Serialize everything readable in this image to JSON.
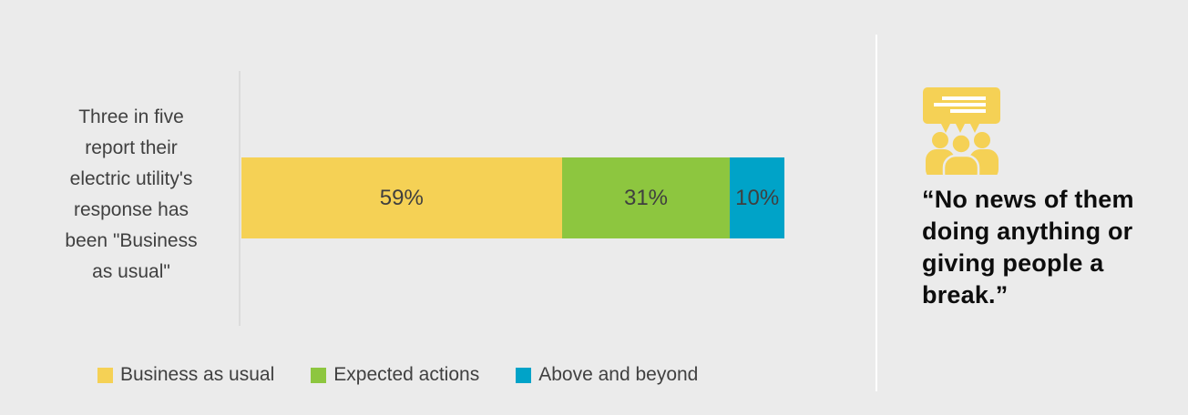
{
  "chart_data": {
    "type": "bar",
    "orientation": "horizontal",
    "stacked": true,
    "title": "",
    "categories": [
      "Three in five report their electric utility's response has been \"Business as usual\""
    ],
    "series": [
      {
        "name": "Business as usual",
        "values": [
          59
        ],
        "color": "#f5d155"
      },
      {
        "name": "Expected actions",
        "values": [
          31
        ],
        "color": "#8dc63f"
      },
      {
        "name": "Above and beyond",
        "values": [
          10
        ],
        "color": "#00a3c8"
      }
    ],
    "data_labels": [
      "59%",
      "31%",
      "10%"
    ],
    "xlim": [
      0,
      100
    ],
    "grid": false,
    "legend_position": "bottom"
  },
  "chart": {
    "category_label": "Three in five report their electric utility's response has been \"Business as usual\"",
    "category_label_lines": [
      "Three in five",
      "report their",
      "electric utility's",
      "response has",
      "been \"Business",
      "as usual\""
    ],
    "segments": [
      {
        "name": "Business as usual",
        "label": "59%",
        "pct": 59,
        "color": "#f5d155"
      },
      {
        "name": "Expected actions",
        "label": "31%",
        "pct": 31,
        "color": "#8dc63f"
      },
      {
        "name": "Above and beyond",
        "label": "10%",
        "pct": 10,
        "color": "#00a3c8"
      }
    ],
    "legend": [
      {
        "label": "Business as usual",
        "color": "#f5d155"
      },
      {
        "label": "Expected actions",
        "color": "#8dc63f"
      },
      {
        "label": "Above and beyond",
        "color": "#00a3c8"
      }
    ]
  },
  "quote": {
    "icon": "audience-speech-icon",
    "icon_color": "#f5d155",
    "text": "“No news of them doing anything or giving people a break.”",
    "lines": [
      "“No news of them",
      "doing anything or",
      "giving people a",
      "break.”"
    ]
  },
  "colors": {
    "background": "#ebebeb",
    "axis_line": "#dcdcdc",
    "divider": "#ffffff",
    "label_text": "#404040",
    "quote_text": "#0d0d0d"
  }
}
